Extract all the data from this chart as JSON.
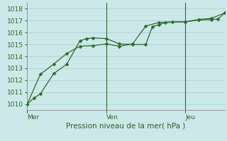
{
  "xlabel": "Pression niveau de la mer( hPa )",
  "bg_color": "#cce8e8",
  "grid_color": "#aacccc",
  "line_color": "#2d6a2d",
  "x_tick_positions": [
    0,
    0.5,
    1.0
  ],
  "x_tick_labels": [
    "Mer",
    "Ven",
    "Jeu"
  ],
  "ylim": [
    1009.5,
    1018.5
  ],
  "xlim": [
    0.0,
    1.25
  ],
  "line1_x": [
    0.0,
    0.042,
    0.083,
    0.167,
    0.25,
    0.333,
    0.375,
    0.417,
    0.5,
    0.583,
    0.667,
    0.75,
    0.792,
    0.833,
    0.875,
    1.0,
    1.083,
    1.167,
    1.208,
    1.25
  ],
  "line1_y": [
    1010.0,
    1010.5,
    1010.85,
    1012.55,
    1013.35,
    1015.3,
    1015.5,
    1015.55,
    1015.5,
    1015.05,
    1015.0,
    1015.0,
    1016.5,
    1016.65,
    1016.85,
    1016.9,
    1017.05,
    1017.1,
    1017.15,
    1017.65
  ],
  "line2_x": [
    0.0,
    0.083,
    0.167,
    0.25,
    0.333,
    0.417,
    0.5,
    0.583,
    0.667,
    0.75,
    0.833,
    0.917,
    1.0,
    1.083,
    1.167,
    1.25
  ],
  "line2_y": [
    1010.0,
    1012.5,
    1013.35,
    1014.25,
    1014.85,
    1014.9,
    1015.05,
    1014.85,
    1015.05,
    1016.55,
    1016.85,
    1016.9,
    1016.9,
    1017.1,
    1017.2,
    1017.65
  ],
  "vline_positions": [
    0.5,
    1.0
  ],
  "marker_size": 2.5,
  "linewidth": 0.9,
  "tick_fontsize": 6.5,
  "xlabel_fontsize": 7.5
}
